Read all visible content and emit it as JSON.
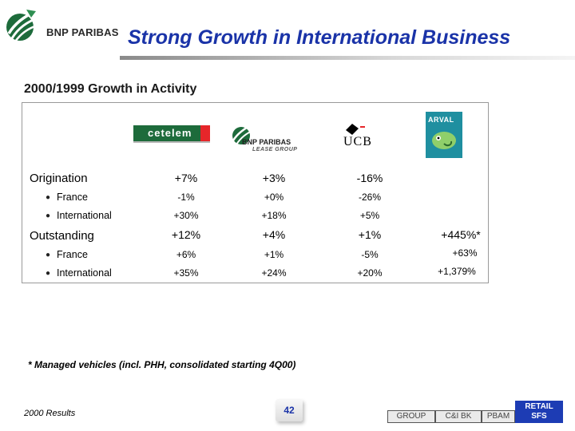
{
  "header": {
    "logo_text": "BNP PARIBAS",
    "title": "Strong Growth in International Business"
  },
  "subtitle": "2000/1999 Growth in Activity",
  "partners": {
    "cetelem": "cetelem",
    "lease_group_name": "BNP PARIBAS",
    "lease_group_sub": "LEASE GROUP",
    "ucb": "UCB",
    "arval": "ARVAL"
  },
  "table": {
    "rows": [
      {
        "label": "Origination",
        "values": [
          "+7%",
          "+3%",
          "-16%",
          ""
        ]
      },
      {
        "label": "France",
        "values": [
          "-1%",
          "+0%",
          "-26%",
          ""
        ]
      },
      {
        "label": "International",
        "values": [
          "+30%",
          "+18%",
          "+5%",
          ""
        ]
      },
      {
        "label": "Outstanding",
        "values": [
          "+12%",
          "+4%",
          "+1%",
          "+445%*"
        ]
      },
      {
        "label": "France",
        "values": [
          "+6%",
          "+1%",
          "-5%",
          "+63%"
        ]
      },
      {
        "label": "International",
        "values": [
          "+35%",
          "+24%",
          "+20%",
          "+1,379%"
        ]
      }
    ]
  },
  "footnote": "* Managed vehicles (incl. PHH, consolidated starting 4Q00)",
  "footer": {
    "left": "2000 Results",
    "page": "42",
    "nav": [
      "GROUP",
      "C&I BK",
      "PBAM"
    ],
    "active_line1": "RETAIL",
    "active_line2": "SFS"
  },
  "colors": {
    "title": "#1a33a8",
    "brand_green": "#1d6b3b",
    "active_tab": "#1d3cb4"
  }
}
